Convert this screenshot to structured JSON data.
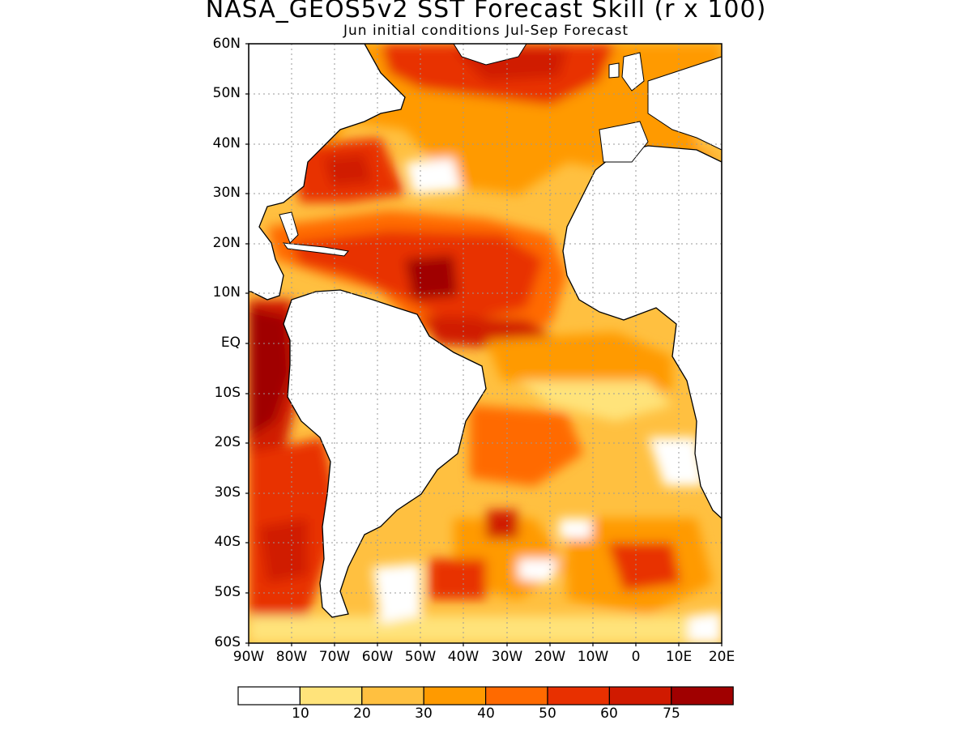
{
  "title": "NASA_GEOS5v2 SST Forecast Skill (r x 100)",
  "subtitle": "Jun initial conditions  Jul-Sep Forecast",
  "lat_labels": [
    "60N",
    "50N",
    "40N",
    "30N",
    "20N",
    "10N",
    "EQ",
    "10S",
    "20S",
    "30S",
    "40S",
    "50S",
    "60S"
  ],
  "lon_labels": [
    "90W",
    "80W",
    "70W",
    "60W",
    "50W",
    "40W",
    "30W",
    "20W",
    "10W",
    "0",
    "10E",
    "20E"
  ],
  "colorbar": {
    "colors": [
      "#ffffff",
      "#ffe37a",
      "#ffc040",
      "#ff9a00",
      "#ff6a00",
      "#e83000",
      "#d01a00",
      "#a00000"
    ],
    "labels": [
      "10",
      "20",
      "30",
      "40",
      "50",
      "60",
      "75"
    ]
  },
  "map_extent": {
    "lon": [
      -90,
      20
    ],
    "lat": [
      -60,
      60
    ]
  }
}
